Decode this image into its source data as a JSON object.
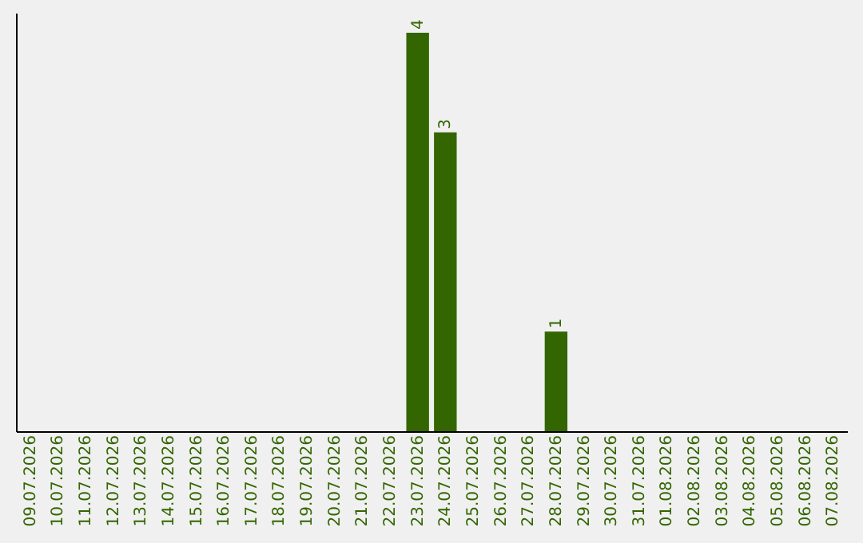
{
  "chart_data": {
    "type": "bar",
    "categories": [
      "09.07.2026",
      "10.07.2026",
      "11.07.2026",
      "12.07.2026",
      "13.07.2026",
      "14.07.2026",
      "15.07.2026",
      "16.07.2026",
      "17.07.2026",
      "18.07.2026",
      "19.07.2026",
      "20.07.2026",
      "21.07.2026",
      "22.07.2026",
      "23.07.2026",
      "24.07.2026",
      "25.07.2026",
      "26.07.2026",
      "27.07.2026",
      "28.07.2026",
      "29.07.2026",
      "30.07.2026",
      "31.07.2026",
      "01.08.2026",
      "02.08.2026",
      "03.08.2026",
      "04.08.2026",
      "05.08.2026",
      "06.08.2026",
      "07.08.2026"
    ],
    "values": [
      null,
      null,
      null,
      null,
      null,
      null,
      null,
      null,
      null,
      null,
      null,
      null,
      null,
      null,
      4,
      3,
      null,
      null,
      null,
      1,
      null,
      null,
      null,
      null,
      null,
      null,
      null,
      null,
      null,
      null
    ],
    "color": "#336600",
    "ylim": [
      0,
      4.2
    ],
    "data_labels": true,
    "tick_labels": "x"
  }
}
